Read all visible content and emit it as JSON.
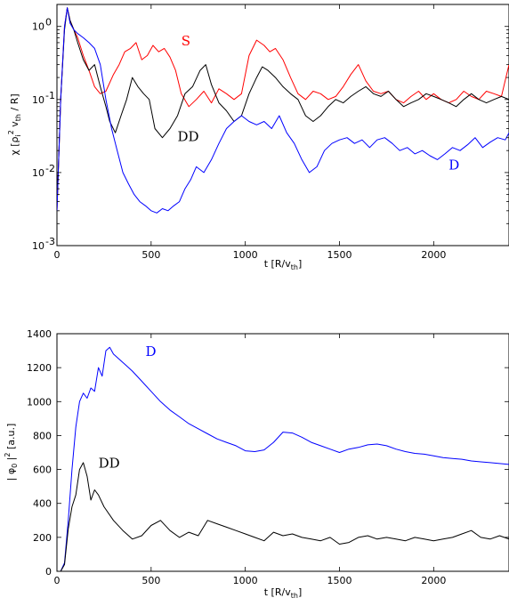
{
  "chart_data": [
    {
      "type": "line",
      "yscale": "log",
      "xlim": [
        0,
        2400
      ],
      "ylim": [
        0.001,
        2
      ],
      "xticks": [
        0,
        500,
        1000,
        1500,
        2000
      ],
      "yticks": [
        0.001,
        0.01,
        0.1,
        1
      ],
      "xtick_labels": [
        "0",
        "500",
        "1000",
        "1500",
        "2000"
      ],
      "ytick_labels": [
        "10",
        "10",
        "10",
        "10"
      ],
      "ytick_exps": [
        "-3",
        "-2",
        "-1",
        "0"
      ],
      "xlabel_main": "t [R/v",
      "xlabel_sub": "th",
      "xlabel_end": "]",
      "ylabel": {
        "p1": "χ [ρ",
        "s1": "i",
        "p2": "",
        "e2": "2",
        "p3": " v",
        "s3": "th",
        "p4": " / R]"
      },
      "grid": false,
      "series": [
        {
          "name": "S",
          "color": "#ff0000",
          "x": [
            0,
            20,
            40,
            55,
            70,
            90,
            110,
            140,
            170,
            200,
            230,
            260,
            300,
            330,
            360,
            390,
            420,
            450,
            480,
            510,
            540,
            570,
            600,
            630,
            660,
            700,
            740,
            780,
            820,
            860,
            900,
            940,
            980,
            1020,
            1060,
            1100,
            1130,
            1160,
            1200,
            1240,
            1280,
            1320,
            1360,
            1400,
            1440,
            1480,
            1520,
            1560,
            1600,
            1640,
            1680,
            1720,
            1760,
            1800,
            1840,
            1880,
            1920,
            1960,
            2000,
            2040,
            2080,
            2120,
            2160,
            2200,
            2240,
            2280,
            2320,
            2360,
            2400
          ],
          "y": [
            0.003,
            0.1,
            1.0,
            1.8,
            1.2,
            0.9,
            0.7,
            0.4,
            0.25,
            0.15,
            0.12,
            0.13,
            0.22,
            0.3,
            0.45,
            0.5,
            0.6,
            0.35,
            0.4,
            0.55,
            0.45,
            0.5,
            0.38,
            0.25,
            0.12,
            0.08,
            0.1,
            0.13,
            0.09,
            0.14,
            0.12,
            0.1,
            0.12,
            0.4,
            0.65,
            0.55,
            0.45,
            0.5,
            0.35,
            0.2,
            0.12,
            0.1,
            0.13,
            0.12,
            0.1,
            0.11,
            0.15,
            0.22,
            0.3,
            0.18,
            0.13,
            0.12,
            0.13,
            0.1,
            0.09,
            0.11,
            0.13,
            0.1,
            0.12,
            0.1,
            0.09,
            0.1,
            0.13,
            0.11,
            0.1,
            0.13,
            0.12,
            0.11,
            0.3
          ]
        },
        {
          "name": "DD",
          "color": "#000000",
          "x": [
            0,
            20,
            40,
            55,
            70,
            90,
            110,
            140,
            170,
            200,
            230,
            260,
            280,
            310,
            340,
            370,
            400,
            430,
            460,
            490,
            520,
            560,
            600,
            640,
            680,
            720,
            760,
            790,
            820,
            860,
            900,
            940,
            980,
            1020,
            1060,
            1090,
            1120,
            1160,
            1200,
            1240,
            1280,
            1320,
            1360,
            1400,
            1440,
            1480,
            1520,
            1560,
            1600,
            1640,
            1680,
            1720,
            1760,
            1800,
            1840,
            1880,
            1920,
            1960,
            2000,
            2040,
            2080,
            2120,
            2160,
            2200,
            2240,
            2280,
            2320,
            2360,
            2400
          ],
          "y": [
            0.003,
            0.1,
            0.9,
            1.8,
            1.2,
            0.9,
            0.6,
            0.35,
            0.25,
            0.3,
            0.15,
            0.08,
            0.05,
            0.035,
            0.06,
            0.1,
            0.2,
            0.15,
            0.12,
            0.1,
            0.04,
            0.03,
            0.04,
            0.06,
            0.12,
            0.15,
            0.25,
            0.3,
            0.16,
            0.09,
            0.07,
            0.05,
            0.06,
            0.12,
            0.2,
            0.28,
            0.25,
            0.2,
            0.15,
            0.12,
            0.1,
            0.06,
            0.05,
            0.06,
            0.08,
            0.1,
            0.09,
            0.11,
            0.13,
            0.15,
            0.12,
            0.11,
            0.13,
            0.1,
            0.08,
            0.09,
            0.1,
            0.12,
            0.11,
            0.1,
            0.09,
            0.08,
            0.1,
            0.12,
            0.1,
            0.09,
            0.1,
            0.11,
            0.1
          ]
        },
        {
          "name": "D",
          "color": "#0000ff",
          "x": [
            0,
            20,
            40,
            55,
            70,
            90,
            110,
            140,
            170,
            200,
            230,
            260,
            290,
            320,
            350,
            380,
            410,
            440,
            470,
            500,
            530,
            560,
            590,
            620,
            650,
            680,
            710,
            740,
            780,
            820,
            860,
            900,
            940,
            980,
            1020,
            1060,
            1100,
            1140,
            1180,
            1220,
            1260,
            1300,
            1340,
            1380,
            1420,
            1460,
            1500,
            1540,
            1580,
            1620,
            1660,
            1700,
            1740,
            1780,
            1820,
            1860,
            1900,
            1940,
            1980,
            2020,
            2060,
            2100,
            2140,
            2180,
            2220,
            2260,
            2300,
            2340,
            2380,
            2400
          ],
          "y": [
            0.003,
            0.1,
            1.0,
            1.8,
            1.1,
            0.9,
            0.8,
            0.7,
            0.6,
            0.5,
            0.3,
            0.1,
            0.04,
            0.02,
            0.01,
            0.007,
            0.005,
            0.004,
            0.0035,
            0.003,
            0.0028,
            0.0032,
            0.003,
            0.0035,
            0.004,
            0.006,
            0.008,
            0.012,
            0.01,
            0.015,
            0.025,
            0.04,
            0.05,
            0.06,
            0.05,
            0.045,
            0.05,
            0.04,
            0.06,
            0.035,
            0.025,
            0.015,
            0.01,
            0.012,
            0.02,
            0.025,
            0.028,
            0.03,
            0.025,
            0.028,
            0.022,
            0.028,
            0.03,
            0.025,
            0.02,
            0.022,
            0.018,
            0.02,
            0.017,
            0.015,
            0.018,
            0.022,
            0.02,
            0.024,
            0.03,
            0.022,
            0.026,
            0.03,
            0.028,
            0.035
          ]
        }
      ],
      "annotations": [
        {
          "text": "S",
          "x": 660,
          "y": 0.55,
          "color": "#ff0000"
        },
        {
          "text": "DD",
          "x": 640,
          "y": 0.027,
          "color": "#000000"
        },
        {
          "text": "D",
          "x": 2080,
          "y": 0.011,
          "color": "#0000ff"
        }
      ]
    },
    {
      "type": "line",
      "xlim": [
        0,
        2400
      ],
      "ylim": [
        0,
        1400
      ],
      "xticks": [
        0,
        500,
        1000,
        1500,
        2000
      ],
      "yticks": [
        0,
        200,
        400,
        600,
        800,
        1000,
        1200,
        1400
      ],
      "xtick_labels": [
        "0",
        "500",
        "1000",
        "1500",
        "2000"
      ],
      "ytick_labels": [
        "0",
        "200",
        "400",
        "600",
        "800",
        "1000",
        "1200",
        "1400"
      ],
      "xlabel_main": "t [R/v",
      "xlabel_sub": "th",
      "xlabel_end": "]",
      "ylabel": {
        "p1": "| φ",
        "s1": "0",
        "p2": " |",
        "e2": "2",
        "p3": " [a.u.]",
        "s3": "",
        "p4": ""
      },
      "grid": false,
      "series": [
        {
          "name": "D",
          "color": "#0000ff",
          "x": [
            0,
            20,
            40,
            60,
            80,
            100,
            120,
            140,
            160,
            180,
            200,
            220,
            240,
            260,
            280,
            300,
            330,
            360,
            400,
            450,
            500,
            550,
            600,
            650,
            700,
            750,
            800,
            850,
            900,
            950,
            1000,
            1050,
            1100,
            1150,
            1200,
            1250,
            1300,
            1350,
            1400,
            1450,
            1500,
            1550,
            1600,
            1650,
            1700,
            1750,
            1800,
            1850,
            1900,
            1950,
            2000,
            2050,
            2100,
            2150,
            2200,
            2250,
            2300,
            2350,
            2400
          ],
          "y": [
            0,
            0,
            50,
            300,
            600,
            850,
            1000,
            1050,
            1020,
            1080,
            1060,
            1200,
            1150,
            1300,
            1320,
            1280,
            1250,
            1220,
            1180,
            1120,
            1060,
            1000,
            950,
            910,
            870,
            840,
            810,
            780,
            760,
            740,
            710,
            705,
            715,
            760,
            820,
            815,
            790,
            760,
            740,
            720,
            700,
            720,
            730,
            745,
            750,
            740,
            720,
            705,
            695,
            690,
            680,
            670,
            665,
            660,
            650,
            645,
            640,
            635,
            630
          ]
        },
        {
          "name": "DD",
          "color": "#000000",
          "x": [
            0,
            20,
            40,
            60,
            80,
            100,
            120,
            140,
            160,
            180,
            200,
            220,
            250,
            300,
            350,
            400,
            450,
            500,
            550,
            600,
            650,
            700,
            750,
            800,
            850,
            900,
            950,
            1000,
            1050,
            1100,
            1150,
            1200,
            1250,
            1300,
            1350,
            1400,
            1450,
            1500,
            1550,
            1600,
            1650,
            1700,
            1750,
            1800,
            1850,
            1900,
            1950,
            2000,
            2050,
            2100,
            2150,
            2200,
            2250,
            2300,
            2350,
            2400
          ],
          "y": [
            0,
            0,
            40,
            250,
            380,
            450,
            600,
            640,
            560,
            420,
            480,
            450,
            380,
            300,
            240,
            190,
            210,
            270,
            300,
            240,
            200,
            230,
            210,
            300,
            280,
            260,
            240,
            220,
            200,
            180,
            230,
            210,
            220,
            200,
            190,
            180,
            200,
            160,
            170,
            200,
            210,
            190,
            200,
            190,
            180,
            200,
            190,
            180,
            190,
            200,
            220,
            240,
            200,
            190,
            210,
            190
          ]
        }
      ],
      "annotations": [
        {
          "text": "D",
          "x": 470,
          "y": 1270,
          "color": "#0000ff"
        },
        {
          "text": "DD",
          "x": 220,
          "y": 610,
          "color": "#000000"
        }
      ]
    }
  ]
}
